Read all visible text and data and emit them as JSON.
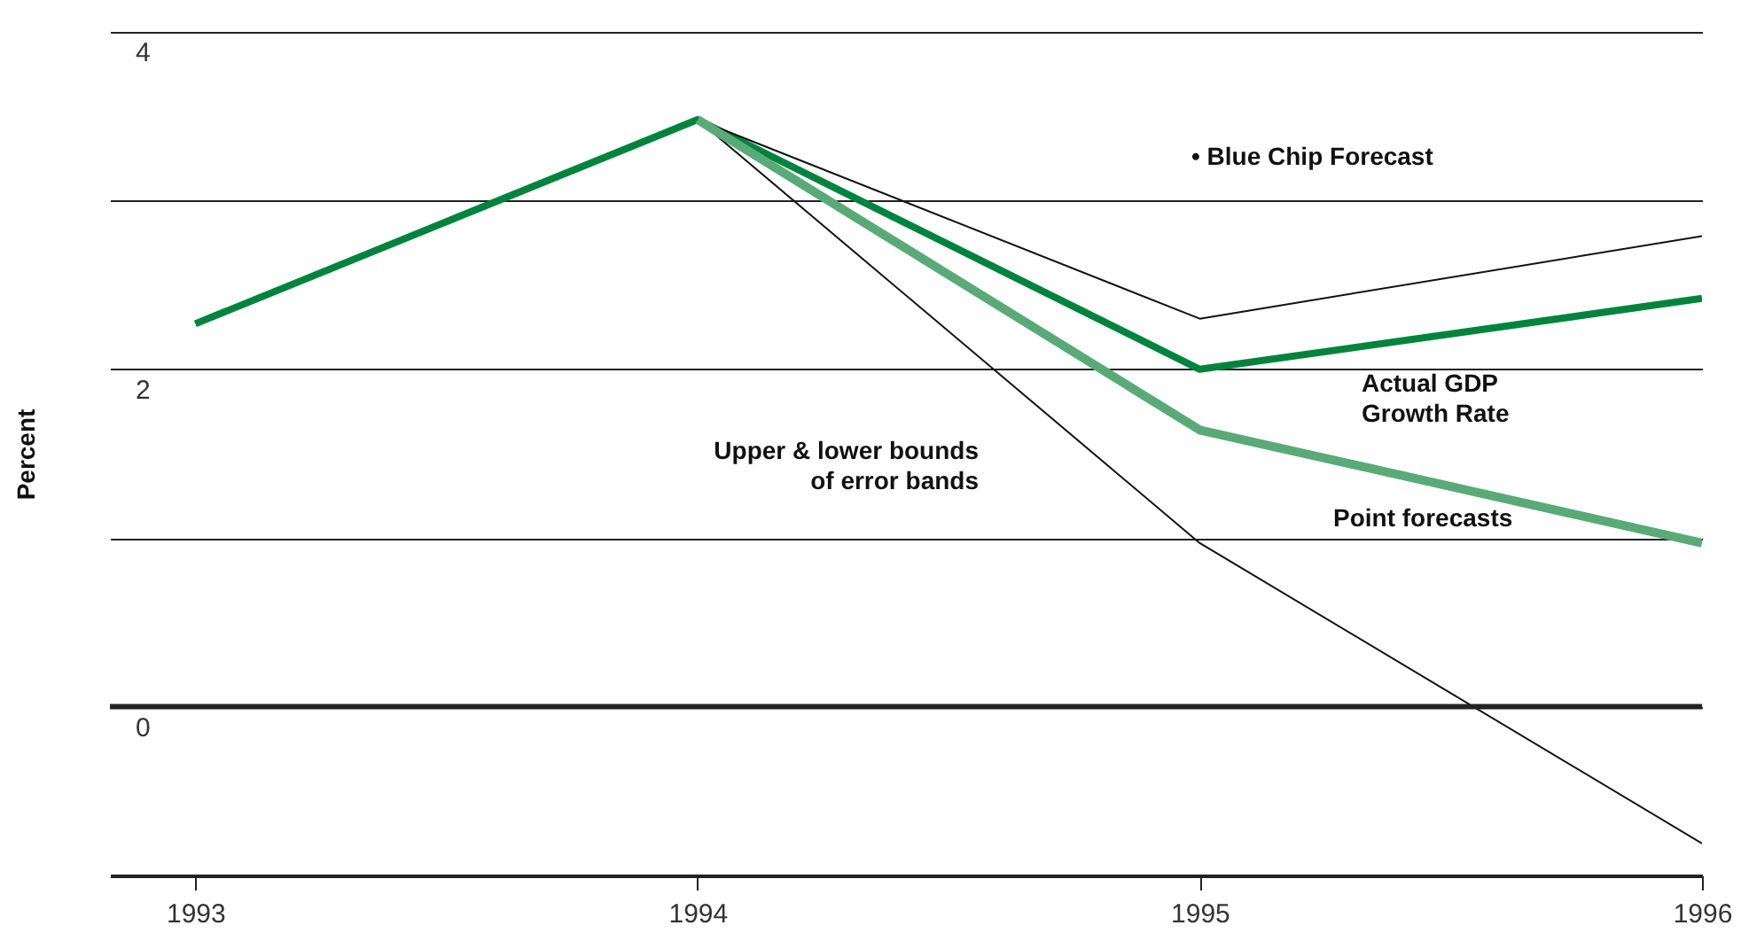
{
  "chart_data": {
    "type": "line",
    "ylabel": "Percent",
    "x": [
      1993,
      1994,
      1995,
      1996
    ],
    "series": [
      {
        "name": "Actual GDP Growth Rate",
        "color": "#00843d",
        "values": [
          2.27,
          3.48,
          2.0,
          2.42
        ]
      },
      {
        "name": "Point forecasts",
        "color": "#5aaa78",
        "values": [
          null,
          3.48,
          1.64,
          0.97
        ]
      },
      {
        "color": "#111111",
        "values": [
          null,
          3.48,
          2.3,
          2.79
        ]
      },
      {
        "color": "#111111",
        "values": [
          null,
          3.48,
          0.97,
          -0.81
        ]
      }
    ],
    "xlim": [
      1992.83,
      1996
    ],
    "xticks": [
      1993,
      1994,
      1995,
      1996
    ],
    "ylim": [
      -1,
      4
    ],
    "yticks": [
      {
        "value": -1,
        "label": null
      },
      0,
      {
        "value": 1,
        "label": null
      },
      2,
      {
        "value": 3,
        "label": null
      },
      4
    ],
    "ref_lines": [
      {
        "axis": "y",
        "value": 0,
        "color": "#222222"
      }
    ],
    "annotations": [
      "• Blue Chip Forecast",
      "Upper & lower bounds of error bands"
    ],
    "grid": "y",
    "marker": "none",
    "line_style": "solid"
  }
}
